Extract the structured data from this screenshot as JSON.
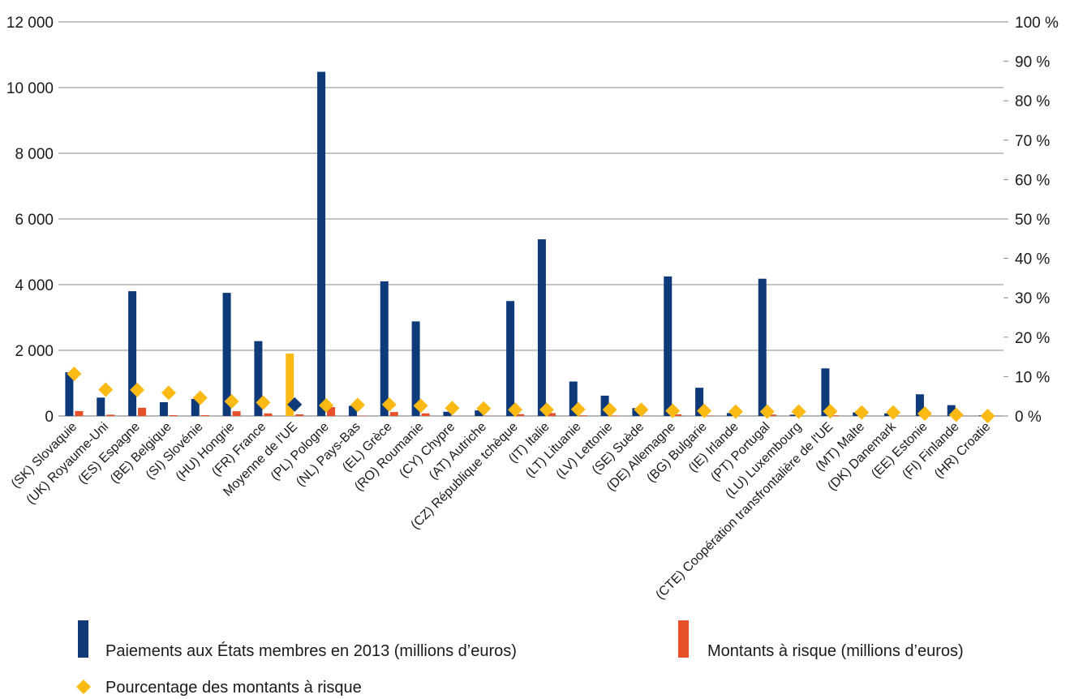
{
  "chart_data": {
    "type": "bar",
    "categories": [
      "(SK) Slovaquie",
      "(UK) Royaume-Uni",
      "(ES) Espagne",
      "(BE) Belgique",
      "(SI) Slovénie",
      "(HU) Hongrie",
      "(FR) France",
      "Moyenne de l'UE",
      "(PL) Pologne",
      "(NL) Pays-Bas",
      "(EL) Grèce",
      "(RO) Roumanie",
      "(CY) Chypre",
      "(AT) Autriche",
      "(CZ) République tchèque",
      "(IT) Italie",
      "(LT) Lituanie",
      "(LV) Lettonie",
      "(SE) Suède",
      "(DE) Allemagne",
      "(BG) Bulgarie",
      "(IE) Irlande",
      "(PT) Portugal",
      "(LU) Luxembourg",
      "(CTE) Coopération transfrontalière de l'UE",
      "(MT) Malte",
      "(DK) Danemark",
      "(EE) Estonie",
      "(FI) Finlande",
      "(HR) Croatie"
    ],
    "series": [
      {
        "name": "Paiements aux États membres en 2013 (millions d’euros)",
        "axis": "left",
        "color": "#0e3a7a",
        "values": [
          1330,
          560,
          3800,
          420,
          520,
          3750,
          2280,
          null,
          10480,
          310,
          4100,
          2880,
          130,
          170,
          3500,
          5380,
          1050,
          620,
          240,
          4250,
          860,
          90,
          4180,
          40,
          1450,
          110,
          80,
          660,
          330,
          20
        ]
      },
      {
        "name": "Montants à risque (millions d’euros)",
        "axis": "left",
        "color": "#e8502a",
        "values": [
          150,
          40,
          250,
          25,
          25,
          145,
          80,
          50,
          270,
          10,
          120,
          80,
          3,
          4,
          55,
          90,
          20,
          12,
          5,
          50,
          12,
          1,
          45,
          0.5,
          20,
          1,
          1,
          4,
          1,
          0
        ]
      },
      {
        "name": "Pourcentage des montants à risque",
        "axis": "right",
        "color": "#fbb913",
        "marker": "diamond",
        "values": [
          10.7,
          6.7,
          6.6,
          5.9,
          4.6,
          3.7,
          3.4,
          null,
          2.7,
          2.8,
          2.9,
          2.6,
          2.0,
          1.9,
          1.6,
          1.6,
          1.7,
          1.6,
          1.6,
          1.3,
          1.3,
          1.1,
          1.1,
          1.1,
          1.2,
          0.9,
          0.9,
          0.6,
          0.3,
          0.0
        ]
      }
    ],
    "eu_average": {
      "category": "Moyenne de l'UE",
      "bar_value": 1900,
      "bar_color": "#fbb913",
      "percentage": 2.9,
      "marker_color": "#0e3a7a"
    },
    "y_left": {
      "min": 0,
      "max": 12000,
      "ticks": [
        "0",
        "2 000",
        "4 000",
        "6 000",
        "8 000",
        "10 000",
        "12 000"
      ]
    },
    "y_right": {
      "min": 0,
      "max": 100,
      "ticks": [
        "0 %",
        "10 %",
        "20 %",
        "30 %",
        "40 %",
        "50 %",
        "60 %",
        "70 %",
        "80 %",
        "90 %",
        "100 %"
      ]
    },
    "grid": true,
    "legend_position": "bottom",
    "legend": [
      {
        "label": "Paiements aux États membres en 2013 (millions d’euros)",
        "symbol": "bar",
        "color": "#0e3a7a"
      },
      {
        "label": "Montants à risque (millions d’euros)",
        "symbol": "bar",
        "color": "#e8502a"
      },
      {
        "label": "Pourcentage des montants à risque",
        "symbol": "diamond",
        "color": "#fbb913"
      }
    ]
  }
}
